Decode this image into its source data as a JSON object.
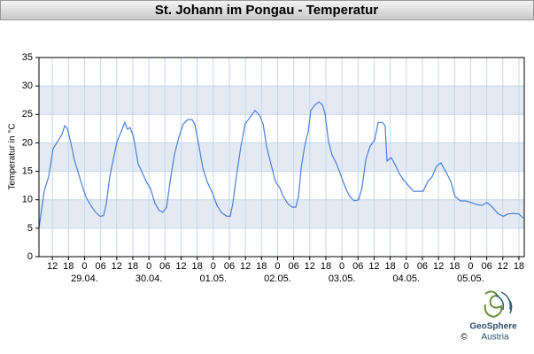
{
  "chart_data": {
    "type": "line",
    "title": "St. Johann im Pongau - Temperatur",
    "y_label": "Temperatur in °C",
    "x": [
      7.0,
      9.0,
      10.6,
      12.3,
      13.9,
      15.6,
      16.6,
      17.6,
      18.9,
      20.2,
      21.5,
      22.9,
      24.5,
      26.5,
      28.1,
      29.8,
      31.1,
      32.1,
      33.4,
      34.7,
      36.1,
      37.7,
      39.0,
      40.0,
      41.0,
      42.3,
      44.0,
      45.3,
      47.0,
      48.6,
      50.3,
      51.9,
      53.2,
      54.6,
      55.9,
      57.5,
      59.2,
      60.8,
      62.5,
      64.1,
      65.1,
      66.4,
      68.1,
      69.7,
      71.7,
      73.4,
      75.0,
      77.0,
      78.3,
      79.3,
      80.6,
      82.3,
      83.9,
      85.6,
      87.6,
      89.2,
      90.6,
      91.9,
      93.5,
      95.2,
      96.8,
      98.1,
      99.8,
      101.5,
      102.8,
      103.8,
      104.8,
      106.1,
      107.4,
      108.4,
      110.0,
      111.4,
      112.7,
      113.7,
      115.0,
      116.3,
      118.0,
      119.6,
      121.3,
      122.9,
      124.6,
      126.2,
      127.5,
      128.9,
      130.5,
      132.2,
      133.5,
      135.1,
      136.1,
      136.8,
      138.4,
      139.8,
      141.4,
      143.1,
      145.0,
      146.7,
      148.7,
      150.3,
      152.0,
      153.6,
      155.3,
      156.9,
      158.9,
      160.6,
      162.2,
      164.2,
      166.2,
      168.2,
      170.1,
      172.1,
      174.1,
      176.1,
      178.1,
      180.1,
      182.0,
      184.0,
      186.0,
      187.6
    ],
    "series": [
      {
        "name": "Temperatur",
        "color": "#4a7fd9",
        "values": [
          5.0,
          11.7,
          14.0,
          19.0,
          20.2,
          21.5,
          23.0,
          22.5,
          20.0,
          17.0,
          15.0,
          12.8,
          10.5,
          8.9,
          7.8,
          7.1,
          7.2,
          9.3,
          14.0,
          17.1,
          20.2,
          22.0,
          23.6,
          22.4,
          22.7,
          21.0,
          16.3,
          15.0,
          13.2,
          12.0,
          9.3,
          8.1,
          7.8,
          8.7,
          13.2,
          17.9,
          21.0,
          23.3,
          24.1,
          24.1,
          23.3,
          20.2,
          15.6,
          13.2,
          11.2,
          9.0,
          7.8,
          7.1,
          7.1,
          9.3,
          14.0,
          19.4,
          23.3,
          24.4,
          25.7,
          24.9,
          23.3,
          19.4,
          16.3,
          13.2,
          12.1,
          10.6,
          9.3,
          8.7,
          8.7,
          10.6,
          15.6,
          19.4,
          22.0,
          25.7,
          26.7,
          27.2,
          26.7,
          25.2,
          20.2,
          17.9,
          16.3,
          14.3,
          12.1,
          10.6,
          9.8,
          10.0,
          12.1,
          17.1,
          19.4,
          20.5,
          23.6,
          23.6,
          23.0,
          16.8,
          17.4,
          16.2,
          14.6,
          13.4,
          12.4,
          11.5,
          11.5,
          11.5,
          13.2,
          14.0,
          15.9,
          16.5,
          14.8,
          13.2,
          10.6,
          9.8,
          9.8,
          9.5,
          9.2,
          9.0,
          9.5,
          8.7,
          7.6,
          7.1,
          7.5,
          7.6,
          7.5,
          6.8
        ]
      }
    ],
    "xlim": [
      7,
      188
    ],
    "xticks": [
      {
        "value": 12,
        "label": "12"
      },
      {
        "value": 18,
        "label": "18"
      },
      {
        "value": 24,
        "label": "0"
      },
      {
        "value": 30,
        "label": "06"
      },
      {
        "value": 36,
        "label": "12"
      },
      {
        "value": 42,
        "label": "18"
      },
      {
        "value": 48,
        "label": "0"
      },
      {
        "value": 54,
        "label": "06"
      },
      {
        "value": 60,
        "label": "12"
      },
      {
        "value": 66,
        "label": "18"
      },
      {
        "value": 72,
        "label": "0"
      },
      {
        "value": 78,
        "label": "06"
      },
      {
        "value": 84,
        "label": "12"
      },
      {
        "value": 90,
        "label": "18"
      },
      {
        "value": 96,
        "label": "0"
      },
      {
        "value": 102,
        "label": "06"
      },
      {
        "value": 108,
        "label": "12"
      },
      {
        "value": 114,
        "label": "18"
      },
      {
        "value": 120,
        "label": "0"
      },
      {
        "value": 126,
        "label": "06"
      },
      {
        "value": 132,
        "label": "12"
      },
      {
        "value": 138,
        "label": "18"
      },
      {
        "value": 144,
        "label": "0"
      },
      {
        "value": 150,
        "label": "06"
      },
      {
        "value": 156,
        "label": "12"
      },
      {
        "value": 162,
        "label": "18"
      },
      {
        "value": 168,
        "label": "0"
      },
      {
        "value": 174,
        "label": "06"
      },
      {
        "value": 180,
        "label": "12"
      },
      {
        "value": 186,
        "label": "18"
      }
    ],
    "date_ticks": [
      {
        "value": 24,
        "label": "29.04."
      },
      {
        "value": 48,
        "label": "30.04."
      },
      {
        "value": 72,
        "label": "01.05."
      },
      {
        "value": 96,
        "label": "02.05."
      },
      {
        "value": 120,
        "label": "03.05."
      },
      {
        "value": 144,
        "label": "04.05."
      },
      {
        "value": 168,
        "label": "05.05."
      }
    ],
    "ylim": [
      0,
      35
    ],
    "yticks": [
      0,
      5,
      10,
      15,
      20,
      25,
      30,
      35
    ],
    "grid": true,
    "band_color": "#e4eaf3",
    "grid_color": "#c6d6ec",
    "logo": {
      "name": "GeoSphere",
      "sub": "Austria",
      "copyright": "©"
    }
  }
}
